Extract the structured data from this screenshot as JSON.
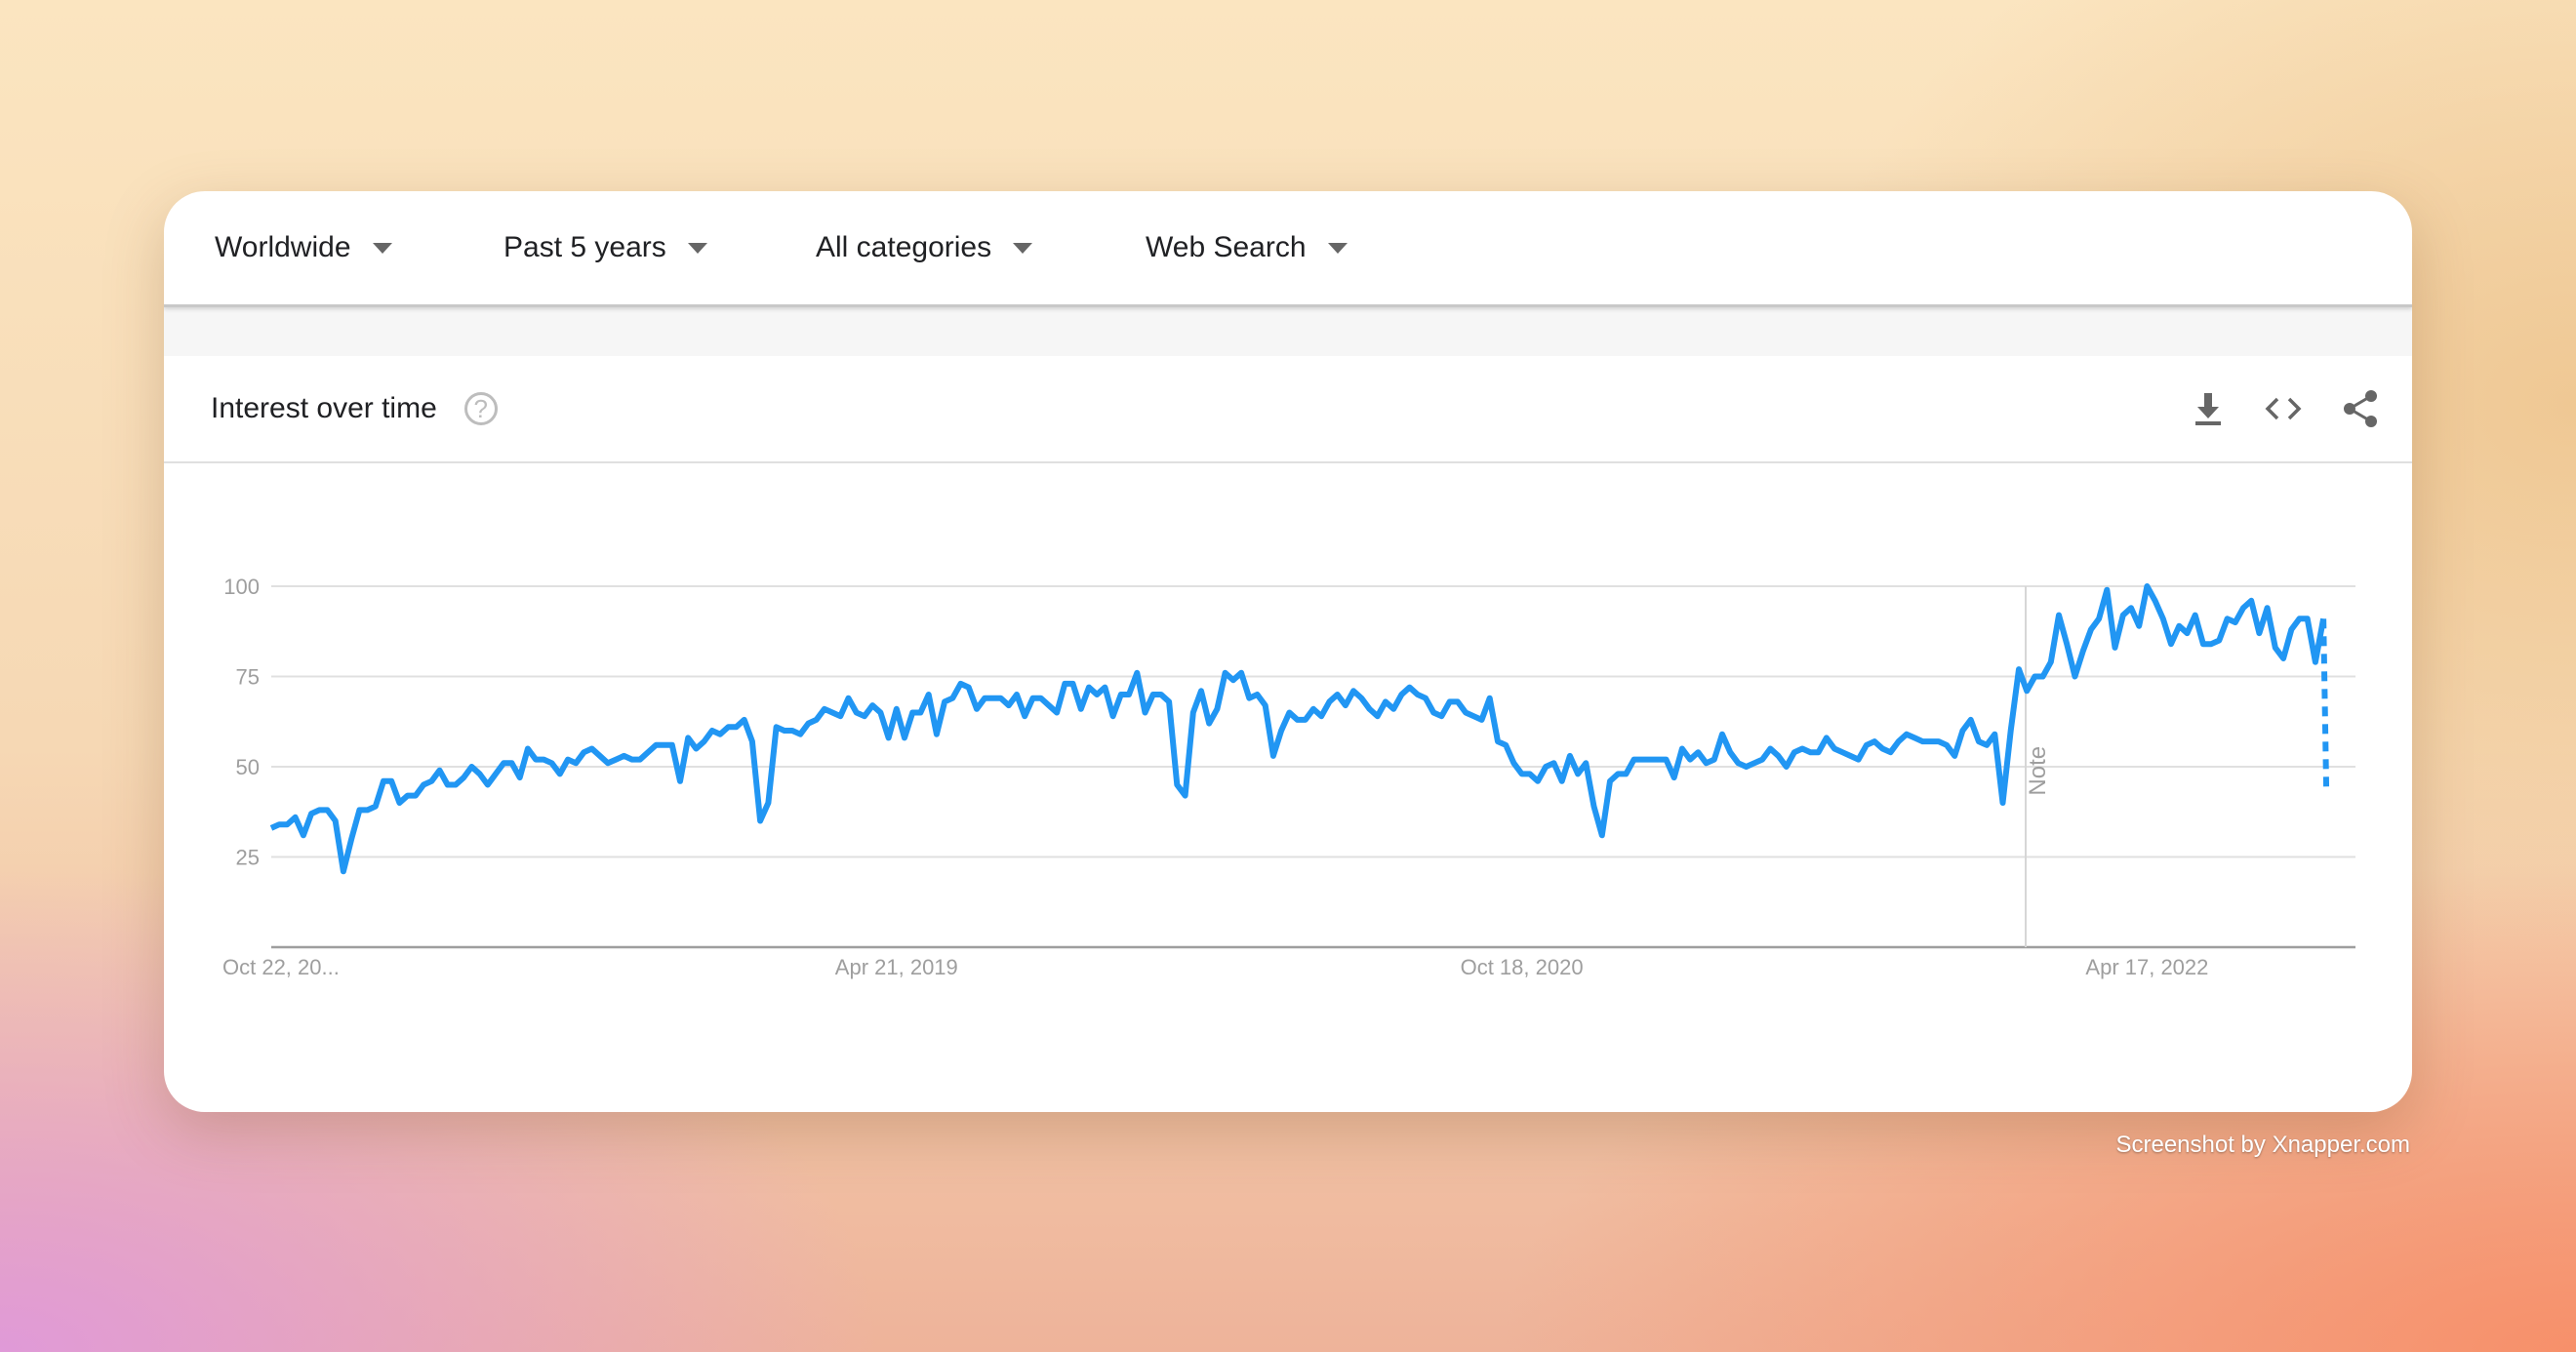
{
  "filters": [
    {
      "label": "Worldwide"
    },
    {
      "label": "Past 5 years"
    },
    {
      "label": "All categories"
    },
    {
      "label": "Web Search"
    }
  ],
  "section": {
    "title": "Interest over time",
    "help_icon": "help-circle-icon",
    "actions": [
      {
        "name": "download",
        "icon": "download-icon"
      },
      {
        "name": "embed",
        "icon": "code-icon"
      },
      {
        "name": "share",
        "icon": "share-icon"
      }
    ]
  },
  "chart_data": {
    "type": "line",
    "frequency": "weekly",
    "start_date": "2017-10-22",
    "ylim": [
      0,
      100
    ],
    "yticks": [
      25,
      50,
      75,
      100
    ],
    "ytick_labels": [
      "25",
      "50",
      "75",
      "100"
    ],
    "xticks": [
      {
        "date": "2017-10-22",
        "label": "Oct 22, 20..."
      },
      {
        "date": "2019-04-21",
        "label": "Apr 21, 2019"
      },
      {
        "date": "2020-10-18",
        "label": "Oct 18, 2020"
      },
      {
        "date": "2022-04-17",
        "label": "Apr 17, 2022"
      }
    ],
    "grid": true,
    "line_color": "#2196f3",
    "note": {
      "date": "2022-01-01",
      "label": "Note"
    },
    "values": [
      33,
      34,
      34,
      36,
      31,
      37,
      38,
      38,
      35,
      21,
      30,
      38,
      38,
      39,
      46,
      46,
      40,
      42,
      42,
      45,
      46,
      49,
      45,
      45,
      47,
      50,
      48,
      45,
      48,
      51,
      51,
      47,
      55,
      52,
      52,
      51,
      48,
      52,
      51,
      54,
      55,
      53,
      51,
      52,
      53,
      52,
      52,
      54,
      56,
      56,
      56,
      46,
      58,
      55,
      57,
      60,
      59,
      61,
      61,
      63,
      57,
      35,
      40,
      61,
      60,
      60,
      59,
      62,
      63,
      66,
      65,
      64,
      69,
      65,
      64,
      67,
      65,
      58,
      66,
      58,
      65,
      65,
      70,
      59,
      68,
      69,
      73,
      72,
      66,
      69,
      69,
      69,
      67,
      70,
      64,
      69,
      69,
      67,
      65,
      73,
      73,
      66,
      72,
      70,
      72,
      64,
      70,
      70,
      76,
      65,
      70,
      70,
      68,
      45,
      42,
      65,
      71,
      62,
      66,
      76,
      74,
      76,
      69,
      70,
      67,
      53,
      60,
      65,
      63,
      63,
      66,
      64,
      68,
      70,
      67,
      71,
      69,
      66,
      64,
      68,
      66,
      70,
      72,
      70,
      69,
      65,
      64,
      68,
      68,
      65,
      64,
      63,
      69,
      57,
      56,
      51,
      48,
      48,
      46,
      50,
      51,
      46,
      53,
      48,
      51,
      39,
      31,
      46,
      48,
      48,
      52,
      52,
      52,
      52,
      52,
      47,
      55,
      52,
      54,
      51,
      52,
      59,
      54,
      51,
      50,
      51,
      52,
      55,
      53,
      50,
      54,
      55,
      54,
      54,
      58,
      55,
      54,
      53,
      52,
      56,
      57,
      55,
      54,
      57,
      59,
      58,
      57,
      57,
      57,
      56,
      53,
      60,
      63,
      57,
      56,
      59,
      40,
      60,
      77,
      71,
      75,
      75,
      79,
      92,
      84,
      75,
      82,
      88,
      91,
      99,
      83,
      92,
      94,
      89,
      100,
      96,
      91,
      84,
      89,
      87,
      92,
      84,
      84,
      85,
      91,
      90,
      94,
      96,
      87,
      94,
      83,
      80,
      88,
      91,
      91,
      79,
      91
    ],
    "partial_value": 43
  },
  "caption": "Screenshot by Xnapper.com"
}
